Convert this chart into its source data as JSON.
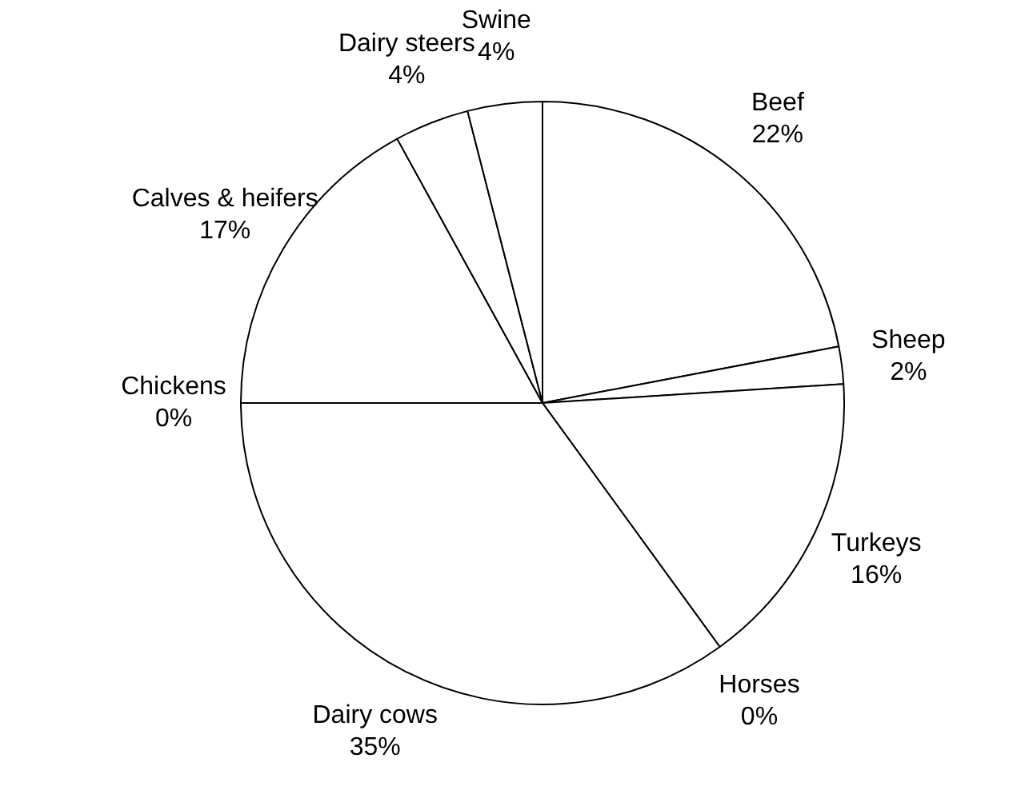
{
  "chart_data": {
    "type": "pie",
    "categories": [
      "Beef",
      "Sheep",
      "Turkeys",
      "Horses",
      "Dairy cows",
      "Chickens",
      "Calves & heifers",
      "Dairy steers",
      "Swine"
    ],
    "values": [
      22,
      2,
      16,
      0,
      35,
      0,
      17,
      4,
      4
    ],
    "value_labels": [
      "22%",
      "2%",
      "16%",
      "0%",
      "35%",
      "0%",
      "17%",
      "4%",
      "4%"
    ],
    "colors": [
      "#ffffff",
      "#ffffff",
      "#ffffff",
      "#ffffff",
      "#ffffff",
      "#ffffff",
      "#ffffff",
      "#ffffff",
      "#ffffff"
    ],
    "legend": false
  }
}
